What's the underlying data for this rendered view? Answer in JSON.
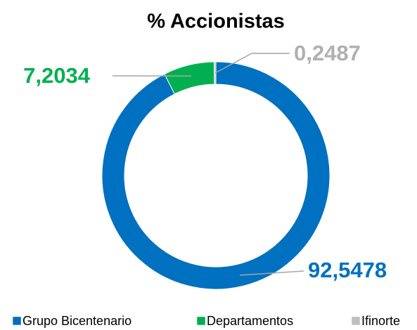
{
  "chart_data": {
    "type": "donut",
    "title": "% Accionistas",
    "categories": [
      "Grupo Bicentenario",
      "Departamentos",
      "Ifinorte"
    ],
    "values": [
      92.5478,
      7.2034,
      0.2487
    ],
    "value_labels": [
      "92,5478",
      "7,2034",
      "0,2487"
    ],
    "colors": [
      "#0070c0",
      "#00b050",
      "#bfbfbf"
    ],
    "legend": "bottom"
  }
}
